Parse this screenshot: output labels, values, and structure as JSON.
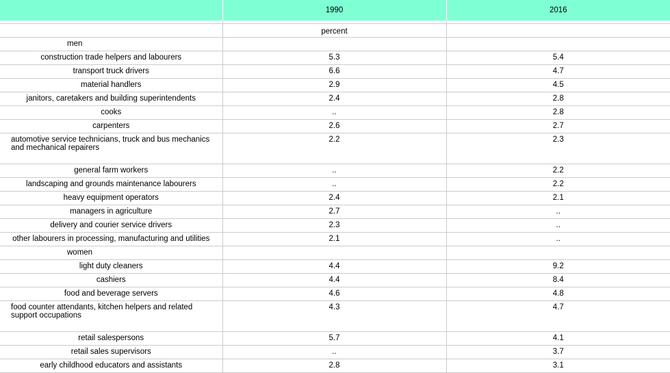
{
  "header": {
    "col_label": "",
    "col_1990": "1990",
    "col_2016": "2016"
  },
  "unit": "percent",
  "sections": [
    {
      "title": "men",
      "rows": [
        {
          "label": "construction trade helpers and labourers",
          "v1990": "5.3",
          "v2016": "5.4"
        },
        {
          "label": "transport truck drivers",
          "v1990": "6.6",
          "v2016": "4.7"
        },
        {
          "label": "material handlers",
          "v1990": "2.9",
          "v2016": "4.5"
        },
        {
          "label": "janitors, caretakers and building superintendents",
          "v1990": "2.4",
          "v2016": "2.8"
        },
        {
          "label": "cooks",
          "v1990": "..",
          "v2016": "2.8"
        },
        {
          "label": "carpenters",
          "v1990": "2.6",
          "v2016": "2.7"
        },
        {
          "label": "automotive service technicians, truck and bus mechanics and mechanical repairers",
          "v1990": "2.2",
          "v2016": "2.3"
        },
        {
          "label": "general farm workers",
          "v1990": "..",
          "v2016": "2.2"
        },
        {
          "label": "landscaping and grounds maintenance labourers",
          "v1990": "..",
          "v2016": "2.2"
        },
        {
          "label": "heavy equipment operators",
          "v1990": "2.4",
          "v2016": "2.1"
        },
        {
          "label": "managers in agriculture",
          "v1990": "2.7",
          "v2016": ".."
        },
        {
          "label": "delivery and courier service drivers",
          "v1990": "2.3",
          "v2016": ".."
        },
        {
          "label": "other labourers in processing, manufacturing and utilities",
          "v1990": "2.1",
          "v2016": ".."
        }
      ]
    },
    {
      "title": "women",
      "rows": [
        {
          "label": "light duty cleaners",
          "v1990": "4.4",
          "v2016": "9.2"
        },
        {
          "label": "cashiers",
          "v1990": "4.4",
          "v2016": "8.4"
        },
        {
          "label": "food and beverage servers",
          "v1990": "4.6",
          "v2016": "4.8"
        },
        {
          "label": "food counter attendants, kitchen helpers and related support occupations",
          "v1990": "4.3",
          "v2016": "4.7"
        },
        {
          "label": "retail salespersons",
          "v1990": "5.7",
          "v2016": "4.1"
        },
        {
          "label": "retail sales supervisors",
          "v1990": "..",
          "v2016": "3.7"
        },
        {
          "label": "early childhood educators and assistants",
          "v1990": "2.8",
          "v2016": "3.1"
        }
      ]
    }
  ]
}
